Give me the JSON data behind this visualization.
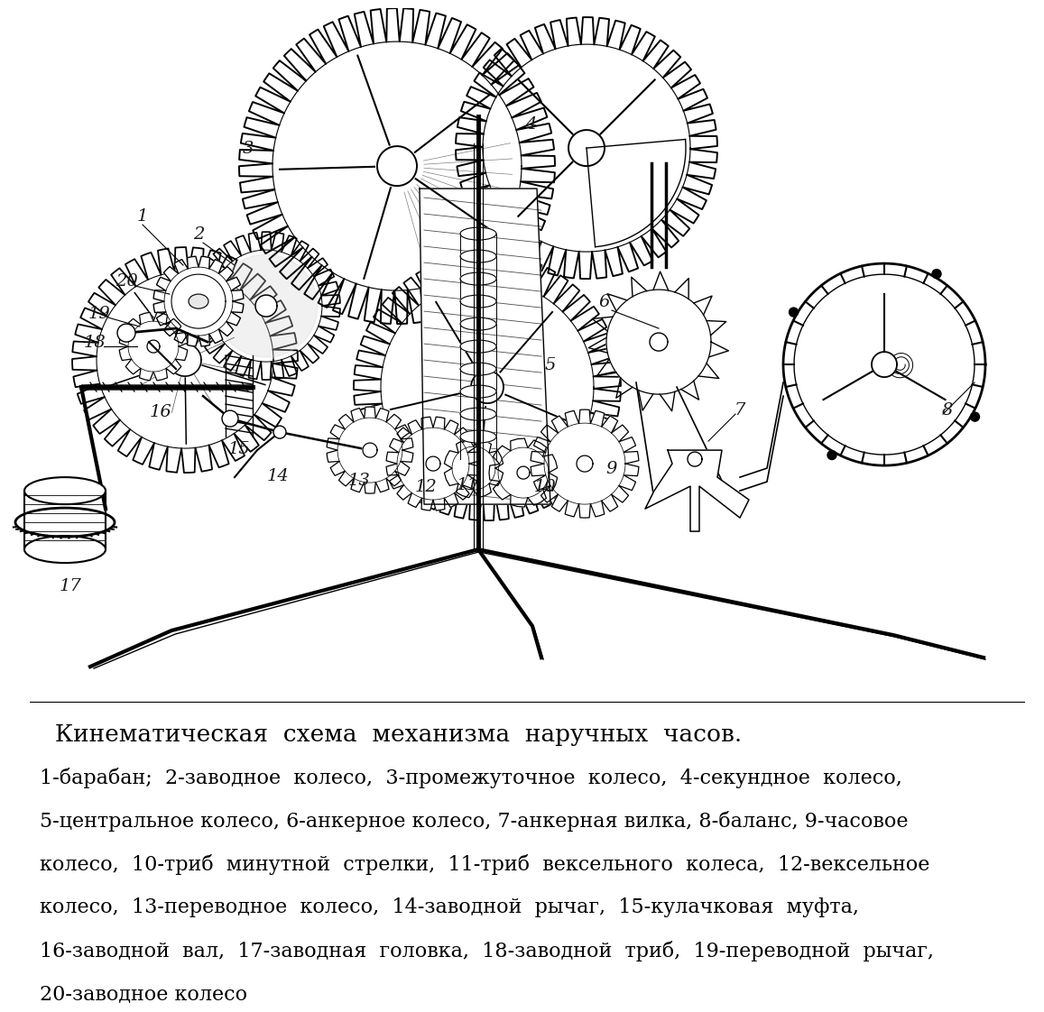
{
  "title": "  Кинематическая  схема  механизма  наручных  часов.",
  "desc_line1": "1-барабан;  2-заводное  колесо,  3-промежуточное  колесо,  4-секундное  колесо,",
  "desc_line2": "5-центральное колесо, 6-анкерное колесо, 7-анкерная вилка, 8-баланс, 9-часовое",
  "desc_line3": "колесо,  10-триб  минутной  стрелки,  11-триб  вексельного  колеса,  12-вексельное",
  "desc_line4": "колесо,  13-переводное  колесо,  14-заводной  рычаг,  15-кулачковая  муфта,",
  "desc_line5": "16-заводной  вал,  17-заводная  головка,  18-заводной  триб,  19-переводной  рычаг,",
  "desc_line6": "20-заводное колесо",
  "bg_color": "#ffffff",
  "text_color": "#000000",
  "title_fontsize": 19,
  "desc_fontsize": 16,
  "fig_width": 11.37,
  "fig_height": 11.01
}
